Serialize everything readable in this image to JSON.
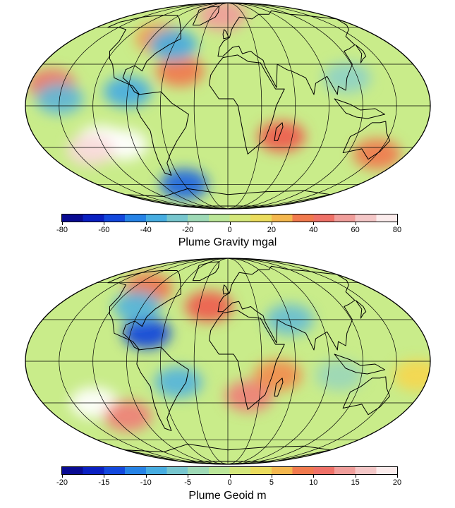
{
  "maps": [
    {
      "name": "plume-gravity-map",
      "colorbar": {
        "ticks": [
          "-80",
          "-60",
          "-40",
          "-20",
          "0",
          "20",
          "40",
          "60",
          "80"
        ],
        "min": -80,
        "max": 80,
        "label": "Plume Gravity mgal"
      },
      "anomalies": [
        {
          "lon": -120,
          "lat": -25,
          "value": 80
        },
        {
          "lon": -100,
          "lat": -28,
          "value": 80
        },
        {
          "lon": -135,
          "lat": -32,
          "value": 70
        },
        {
          "lon": -80,
          "lat": 50,
          "value": 30
        },
        {
          "lon": -45,
          "lat": 25,
          "value": 35
        },
        {
          "lon": -10,
          "lat": 72,
          "value": 55
        },
        {
          "lon": 50,
          "lat": -22,
          "value": 40
        },
        {
          "lon": -160,
          "lat": 15,
          "value": 45
        },
        {
          "lon": 150,
          "lat": -35,
          "value": 35
        },
        {
          "lon": -90,
          "lat": 10,
          "value": -35
        },
        {
          "lon": -150,
          "lat": 5,
          "value": -30
        },
        {
          "lon": -60,
          "lat": 45,
          "value": -35
        },
        {
          "lon": -60,
          "lat": -60,
          "value": -50
        },
        {
          "lon": 110,
          "lat": 20,
          "value": -20
        }
      ]
    },
    {
      "name": "plume-geoid-map",
      "colorbar": {
        "ticks": [
          "-20",
          "-15",
          "-10",
          "-5",
          "0",
          "5",
          "10",
          "15",
          "20"
        ],
        "min": -20,
        "max": 20,
        "label": "Plume Geoid m"
      },
      "anomalies": [
        {
          "lon": -130,
          "lat": -30,
          "value": 20
        },
        {
          "lon": -105,
          "lat": -40,
          "value": 12
        },
        {
          "lon": 20,
          "lat": -25,
          "value": 12
        },
        {
          "lon": 45,
          "lat": -10,
          "value": 8
        },
        {
          "lon": -20,
          "lat": 40,
          "value": 10
        },
        {
          "lon": -100,
          "lat": 55,
          "value": 9
        },
        {
          "lon": 170,
          "lat": -10,
          "value": 5
        },
        {
          "lon": -75,
          "lat": 20,
          "value": -14
        },
        {
          "lon": -95,
          "lat": 40,
          "value": -8
        },
        {
          "lon": 60,
          "lat": 30,
          "value": -7
        },
        {
          "lon": -45,
          "lat": -15,
          "value": -8
        },
        {
          "lon": 100,
          "lat": -10,
          "value": -4
        }
      ]
    }
  ],
  "colors": {
    "scale": [
      "#08007a",
      "#0a2bd8",
      "#2fa0ea",
      "#8fd2c4",
      "#c9ec8a",
      "#f6d64e",
      "#ef5b4e",
      "#f0b4b4",
      "#ffffff"
    ],
    "coastline": "#000000",
    "graticule": "#000000"
  }
}
